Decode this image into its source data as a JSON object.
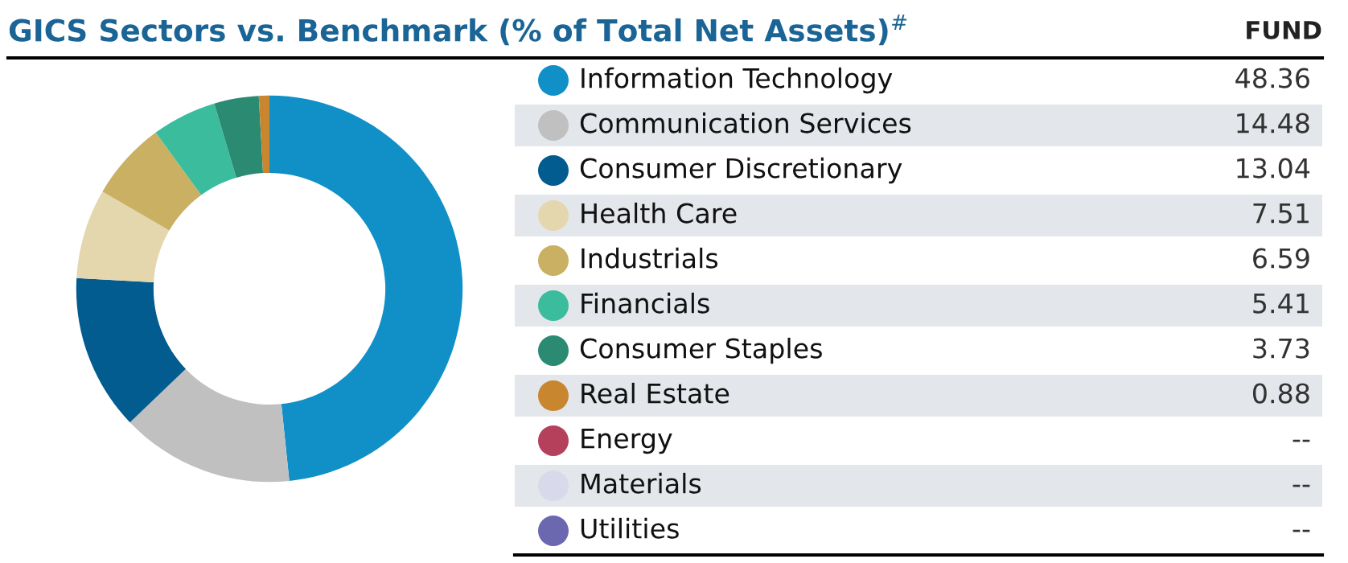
{
  "chart_data": {
    "type": "donut",
    "title": "GICS Sectors vs. Benchmark (% of Total Net Assets)$^{#}$",
    "legend_title": "FUND",
    "categories": [
      "Information Technology",
      "Communication Services",
      "Consumer Discretionary",
      "Health Care",
      "Industrials",
      "Financials",
      "Consumer Staples",
      "Real Estate",
      "Energy",
      "Materials",
      "Utilities"
    ],
    "values": [
      48.36,
      14.48,
      13.04,
      7.51,
      6.59,
      5.41,
      3.73,
      0.88,
      null,
      null,
      null
    ],
    "value_labels": [
      "48.36",
      "14.48",
      "13.04",
      "7.51",
      "6.59",
      "5.41",
      "3.73",
      "0.88",
      "--",
      "--",
      "--"
    ],
    "colors": [
      "#1190c8",
      "#c0c0c0",
      "#025c8f",
      "#e4d7ae",
      "#c9b062",
      "#3bbd9d",
      "#2b8a72",
      "#c8862e",
      "#b5405c",
      "#d8daec",
      "#6b68b0"
    ],
    "legend": "right"
  }
}
